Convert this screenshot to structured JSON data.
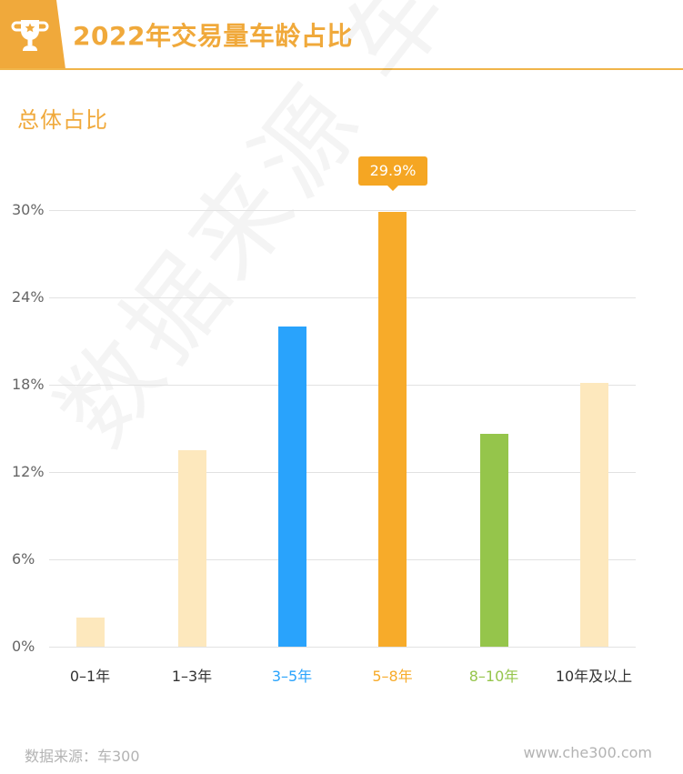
{
  "header": {
    "title": "2022年交易量车龄占比",
    "icon": "trophy-icon",
    "accent_color": "#f0a93b"
  },
  "subtitle": "总体占比",
  "watermark": "数据来源 车300",
  "tooltip": {
    "label": "29.9%",
    "category": "5–8年"
  },
  "footer": {
    "source": "数据来源：车300",
    "website": "www.che300.com"
  },
  "chart_data": {
    "type": "bar",
    "title": "2022年交易量车龄占比",
    "subtitle": "总体占比",
    "xlabel": "",
    "ylabel": "",
    "categories": [
      "0–1年",
      "1–3年",
      "3–5年",
      "5–8年",
      "8–10年",
      "10年及以上"
    ],
    "values": [
      2.0,
      13.5,
      22.0,
      29.9,
      14.6,
      18.1
    ],
    "unit": "%",
    "colors": [
      "#fde8bd",
      "#fde8bd",
      "#29a3fc",
      "#f7ab2a",
      "#95c54b",
      "#fde8bd"
    ],
    "label_colors": [
      "#333333",
      "#333333",
      "#29a3fc",
      "#f7ab2a",
      "#95c54b",
      "#333333"
    ],
    "yticks": [
      "0%",
      "6%",
      "12%",
      "18%",
      "24%",
      "30%"
    ],
    "ytick_values": [
      0,
      6,
      12,
      18,
      24,
      30
    ],
    "ylim": [
      0,
      30
    ],
    "grid": true,
    "legend": null,
    "annotations": [
      {
        "category": "5–8年",
        "text": "29.9%"
      }
    ]
  }
}
